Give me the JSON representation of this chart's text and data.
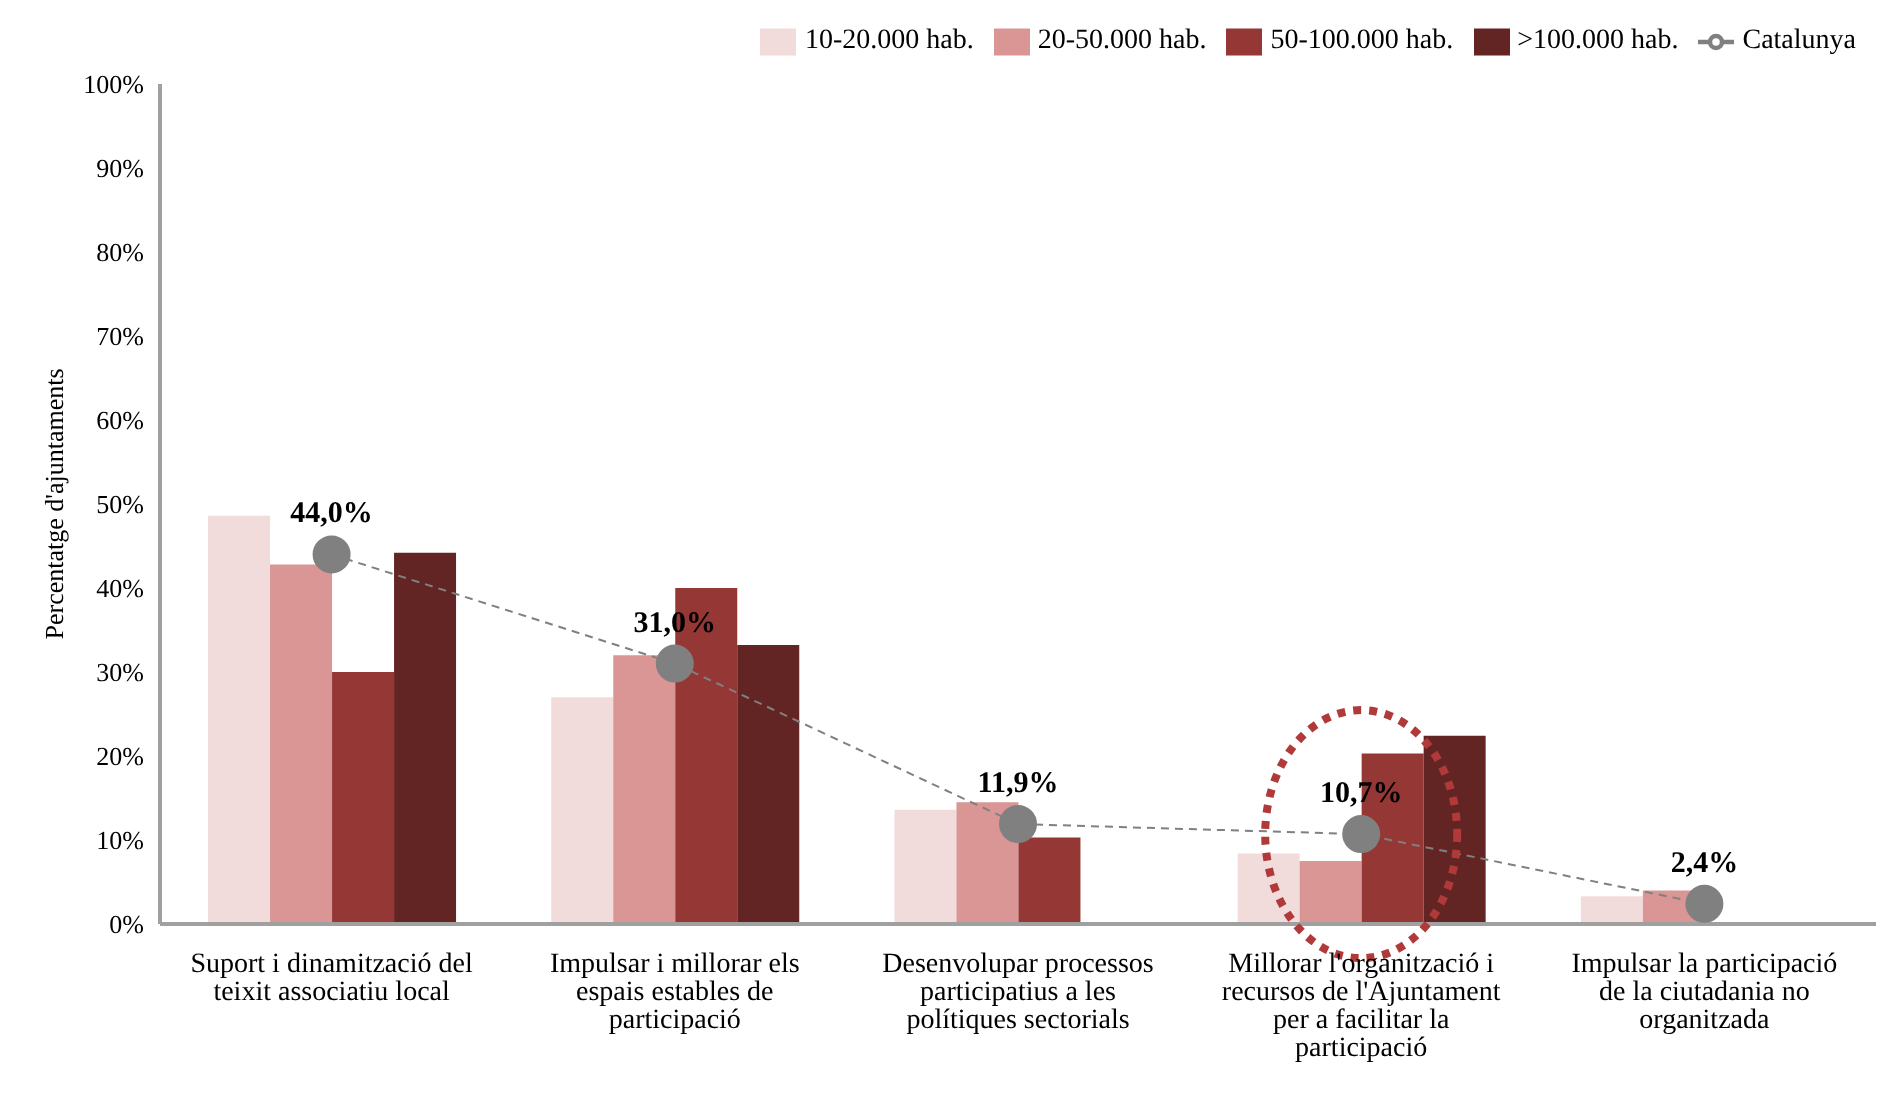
{
  "chart_data": {
    "type": "bar",
    "ylabel": "Percentatge d'ajuntaments",
    "categories": [
      "Suport i dinamització del teixit associatiu local",
      "Impulsar i millorar els espais estables de participació",
      "Desenvolupar processos participatius a les polítiques sectorials",
      "Millorar l'organització i recursos de l'Ajuntament per a facilitar la participació",
      "Impulsar la participació de la ciutadania no organitzada"
    ],
    "series": [
      {
        "name": "10-20.000 hab.",
        "color": "#f2dcdb",
        "values": [
          48.6,
          27,
          13.6,
          8.4,
          3.3
        ]
      },
      {
        "name": "20-50.000 hab.",
        "color": "#d99694",
        "values": [
          42.8,
          32,
          14.5,
          7.5,
          4.0
        ]
      },
      {
        "name": "50-100.000 hab.",
        "color": "#953735",
        "values": [
          30,
          40,
          10.3,
          20.3,
          0
        ]
      },
      {
        "name": ">100.000 hab.",
        "color": "#632523",
        "values": [
          44.2,
          33.2,
          0,
          22.4,
          0
        ]
      },
      {
        "name": "Catalunya",
        "type": "line",
        "color": "#808080",
        "line_style": "dashed",
        "marker": "circle",
        "values": [
          44.0,
          31.0,
          11.9,
          10.7,
          2.4
        ],
        "value_labels": [
          "44,0%",
          "31,0%",
          "11,9%",
          "10,7%",
          "2,4%"
        ]
      }
    ],
    "ylim": [
      0,
      100
    ],
    "yticks": [
      {
        "value": 0,
        "label": "0%"
      },
      {
        "value": 10,
        "label": "10%"
      },
      {
        "value": 20,
        "label": "20%"
      },
      {
        "value": 30,
        "label": "30%"
      },
      {
        "value": 40,
        "label": "40%"
      },
      {
        "value": 50,
        "label": "50%"
      },
      {
        "value": 60,
        "label": "60%"
      },
      {
        "value": 70,
        "label": "70%"
      },
      {
        "value": 80,
        "label": "80%"
      },
      {
        "value": 90,
        "label": "90%"
      },
      {
        "value": 100,
        "label": "100%"
      }
    ],
    "grid": false,
    "legend": "top right"
  }
}
